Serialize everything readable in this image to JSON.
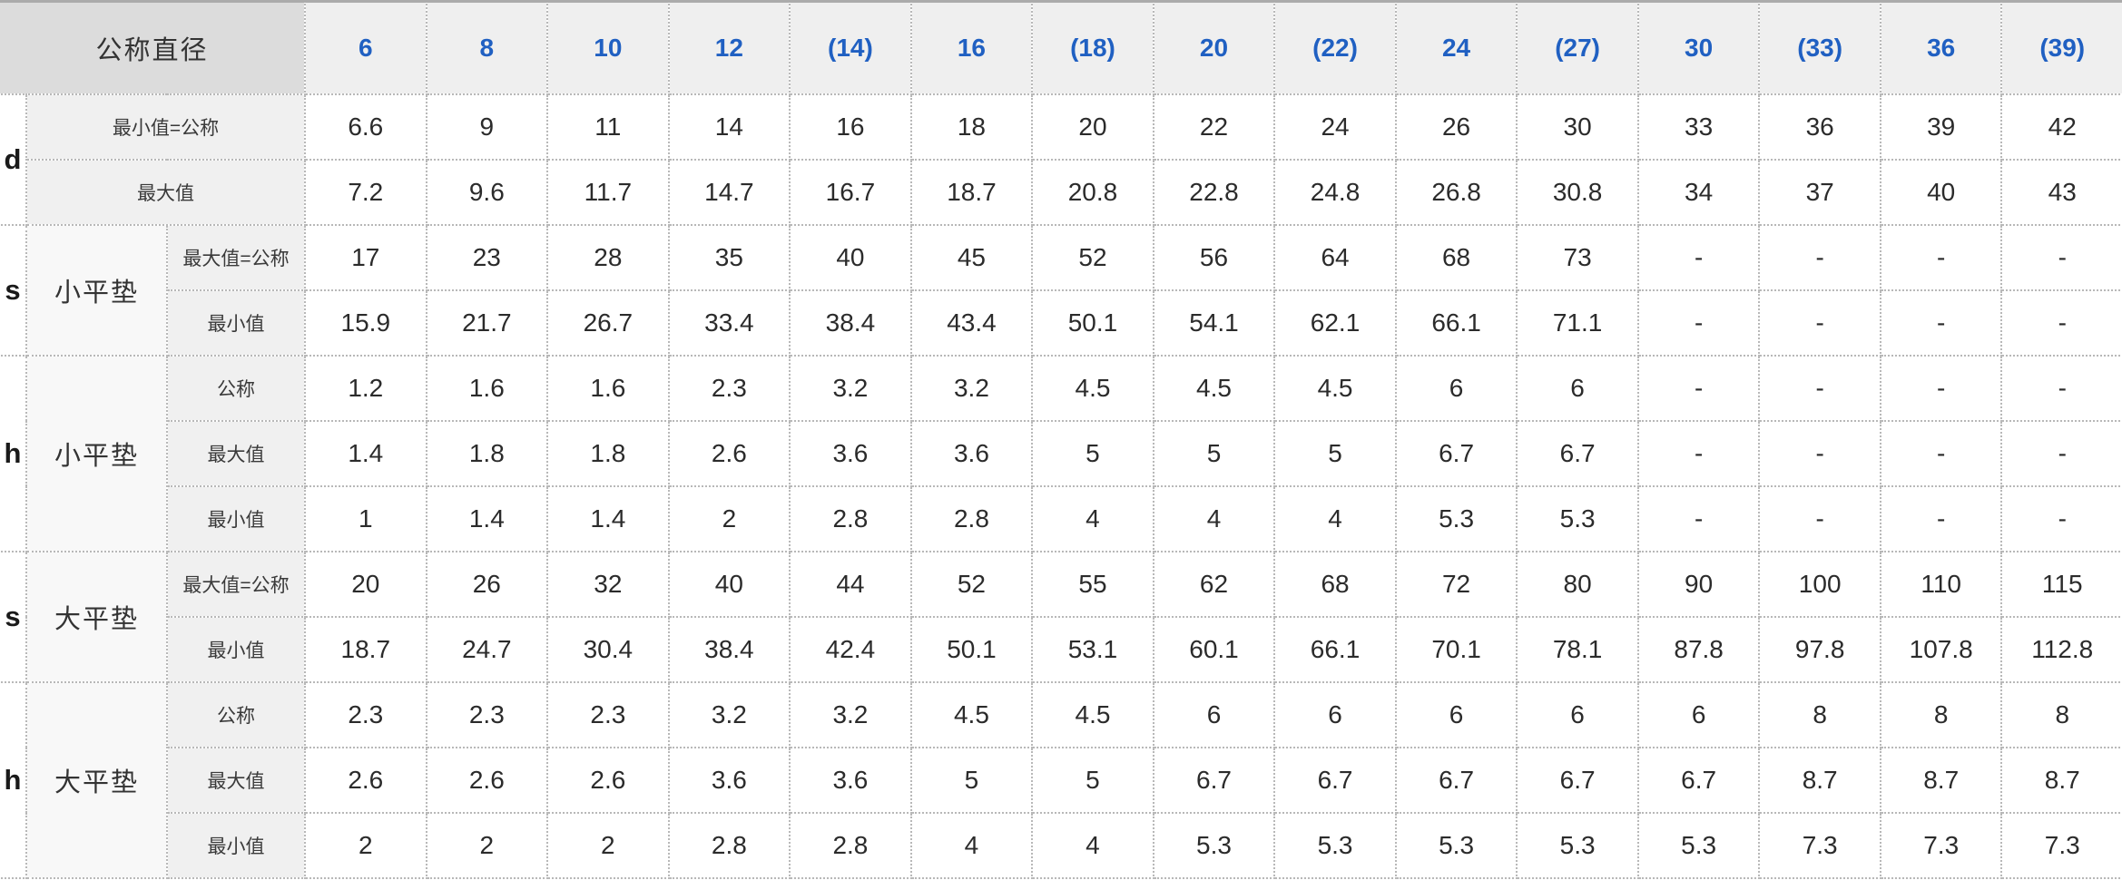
{
  "colors": {
    "header_number_blue": "#2060C2",
    "top_bar_gray": "#ABABAB",
    "header_bg": "#EFEFEF",
    "corner_bg": "#DCDCDC",
    "label_bg": "#F0F0F0",
    "grid_dotted": "#B8B8B8"
  },
  "chart_data": {
    "type": "table",
    "corner_label": "公称直径",
    "columns": [
      "6",
      "8",
      "10",
      "12",
      "(14)",
      "16",
      "(18)",
      "20",
      "(22)",
      "24",
      "(27)",
      "30",
      "(33)",
      "36",
      "(39)"
    ],
    "groups": [
      {
        "letter": "d",
        "part": "",
        "rows": [
          {
            "label": "最小值=公称",
            "values": [
              6.6,
              9,
              11,
              14,
              16,
              18,
              20,
              22,
              24,
              26,
              30,
              33,
              36,
              39,
              42
            ]
          },
          {
            "label": "最大值",
            "values": [
              7.2,
              9.6,
              11.7,
              14.7,
              16.7,
              18.7,
              20.8,
              22.8,
              24.8,
              26.8,
              30.8,
              34,
              37,
              40,
              43
            ]
          }
        ]
      },
      {
        "letter": "s",
        "part": "小平垫",
        "rows": [
          {
            "label": "最大值=公称",
            "values": [
              17,
              23,
              28,
              35,
              40,
              45,
              52,
              56,
              64,
              68,
              73,
              "-",
              "-",
              "-",
              "-"
            ]
          },
          {
            "label": "最小值",
            "values": [
              15.9,
              21.7,
              26.7,
              33.4,
              38.4,
              43.4,
              50.1,
              54.1,
              62.1,
              66.1,
              71.1,
              "-",
              "-",
              "-",
              "-"
            ]
          }
        ]
      },
      {
        "letter": "h",
        "part": "小平垫",
        "rows": [
          {
            "label": "公称",
            "values": [
              1.2,
              1.6,
              1.6,
              2.3,
              3.2,
              3.2,
              4.5,
              4.5,
              4.5,
              6,
              6,
              "-",
              "-",
              "-",
              "-"
            ]
          },
          {
            "label": "最大值",
            "values": [
              1.4,
              1.8,
              1.8,
              2.6,
              3.6,
              3.6,
              5,
              5,
              5,
              6.7,
              6.7,
              "-",
              "-",
              "-",
              "-"
            ]
          },
          {
            "label": "最小值",
            "values": [
              1,
              1.4,
              1.4,
              2,
              2.8,
              2.8,
              4,
              4,
              4,
              5.3,
              5.3,
              "-",
              "-",
              "-",
              "-"
            ]
          }
        ]
      },
      {
        "letter": "s",
        "part": "大平垫",
        "rows": [
          {
            "label": "最大值=公称",
            "values": [
              20,
              26,
              32,
              40,
              44,
              52,
              55,
              62,
              68,
              72,
              80,
              90,
              100,
              110,
              115
            ]
          },
          {
            "label": "最小值",
            "values": [
              18.7,
              24.7,
              30.4,
              38.4,
              42.4,
              50.1,
              53.1,
              60.1,
              66.1,
              70.1,
              78.1,
              87.8,
              97.8,
              107.8,
              112.8
            ]
          }
        ]
      },
      {
        "letter": "h",
        "part": "大平垫",
        "rows": [
          {
            "label": "公称",
            "values": [
              2.3,
              2.3,
              2.3,
              3.2,
              3.2,
              4.5,
              4.5,
              6,
              6,
              6,
              6,
              6,
              8,
              8,
              8
            ]
          },
          {
            "label": "最大值",
            "values": [
              2.6,
              2.6,
              2.6,
              3.6,
              3.6,
              5,
              5,
              6.7,
              6.7,
              6.7,
              6.7,
              6.7,
              8.7,
              8.7,
              8.7
            ]
          },
          {
            "label": "最小值",
            "values": [
              2,
              2,
              2,
              2.8,
              2.8,
              4,
              4,
              5.3,
              5.3,
              5.3,
              5.3,
              5.3,
              7.3,
              7.3,
              7.3
            ]
          }
        ]
      }
    ]
  }
}
